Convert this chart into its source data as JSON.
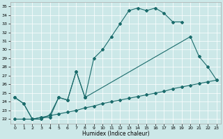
{
  "title": "",
  "xlabel": "Humidex (Indice chaleur)",
  "xlim": [
    -0.5,
    23.5
  ],
  "ylim": [
    21.5,
    35.5
  ],
  "xticks": [
    0,
    1,
    2,
    3,
    4,
    5,
    6,
    7,
    8,
    9,
    10,
    11,
    12,
    13,
    14,
    15,
    16,
    17,
    18,
    19,
    20,
    21,
    22,
    23
  ],
  "yticks": [
    22,
    23,
    24,
    25,
    26,
    27,
    28,
    29,
    30,
    31,
    32,
    33,
    34,
    35
  ],
  "bg_color": "#cce8e8",
  "line_color": "#1a6b6b",
  "marker": "D",
  "markersize": 2,
  "linewidth": 0.8,
  "line1_x": [
    0,
    1,
    2,
    3,
    4,
    5,
    6,
    7,
    8,
    9,
    10,
    11,
    12,
    13,
    14,
    15,
    16,
    17,
    18,
    19
  ],
  "line1_y": [
    24.5,
    23.8,
    22.0,
    22.0,
    22.5,
    24.5,
    24.2,
    27.5,
    24.5,
    29.0,
    30.0,
    31.5,
    33.0,
    34.5,
    34.8,
    34.5,
    34.8,
    34.2,
    33.2,
    33.2
  ],
  "line2_x": [
    0,
    1,
    2,
    3,
    4,
    5,
    6,
    7,
    8,
    20,
    21,
    22,
    23
  ],
  "line2_y": [
    24.5,
    23.8,
    22.0,
    22.2,
    22.2,
    24.5,
    24.2,
    27.5,
    24.5,
    31.5,
    29.2,
    28.0,
    26.5
  ],
  "line3_x": [
    0,
    1,
    2,
    3,
    4,
    5,
    6,
    7,
    8,
    9,
    10,
    11,
    12,
    13,
    14,
    15,
    16,
    17,
    18,
    19,
    20,
    21,
    22,
    23
  ],
  "line3_y": [
    22.0,
    22.0,
    22.0,
    22.2,
    22.4,
    22.6,
    22.8,
    23.0,
    23.3,
    23.5,
    23.8,
    24.0,
    24.2,
    24.4,
    24.6,
    24.8,
    25.0,
    25.2,
    25.5,
    25.7,
    25.9,
    26.1,
    26.3,
    26.5
  ]
}
